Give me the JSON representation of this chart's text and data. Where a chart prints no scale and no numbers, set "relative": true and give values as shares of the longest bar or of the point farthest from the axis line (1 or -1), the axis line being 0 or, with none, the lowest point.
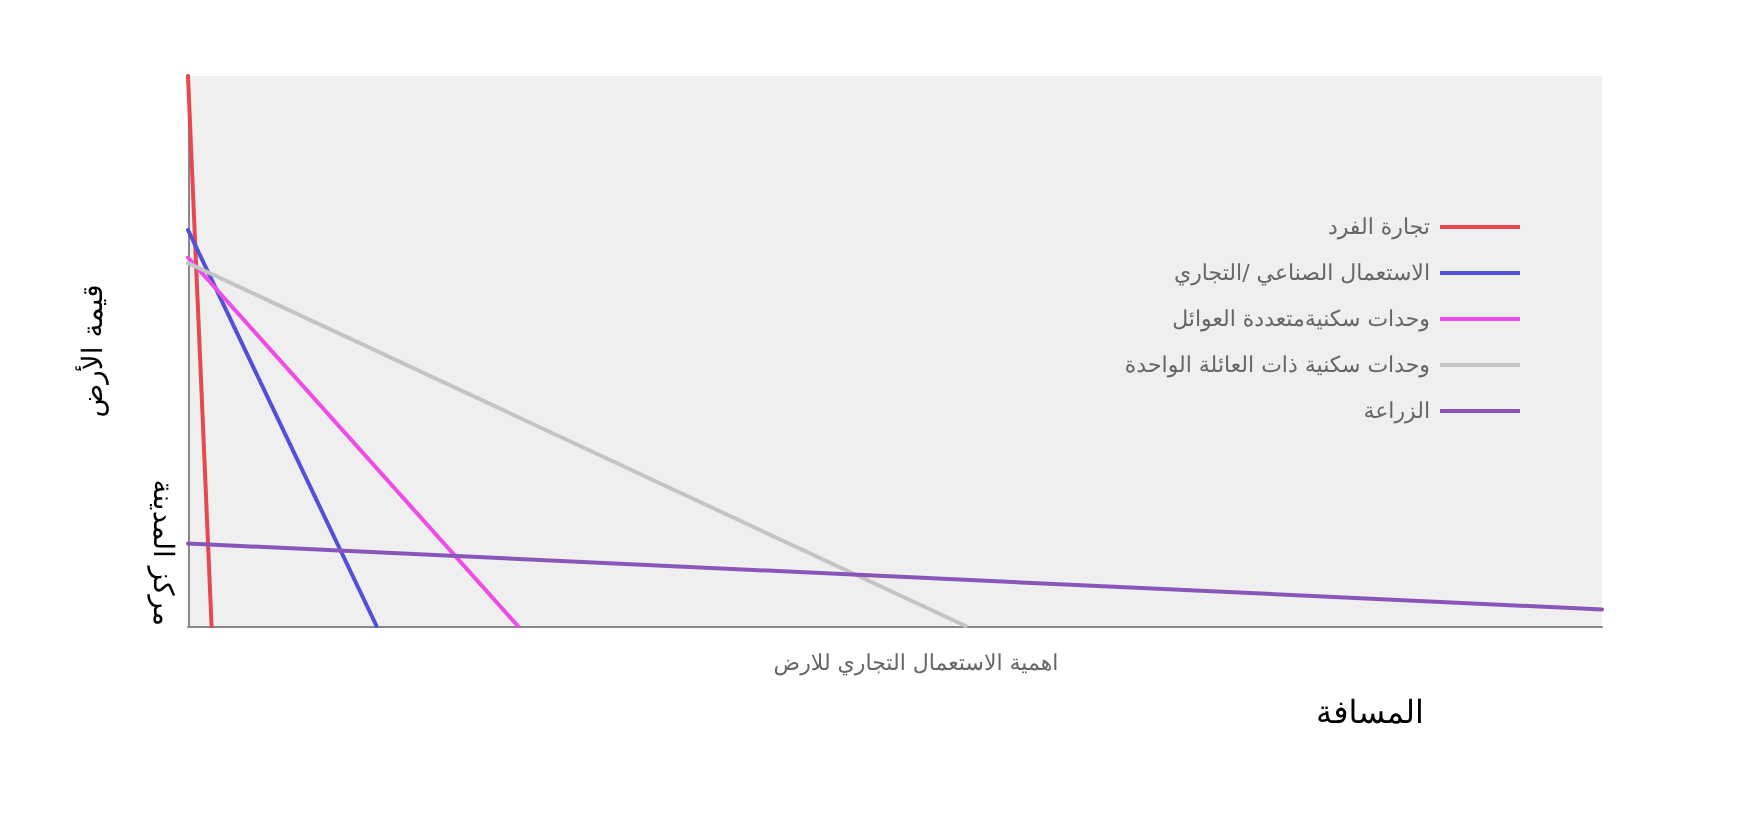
{
  "chart_data": {
    "type": "line",
    "relative": true,
    "xlabel": "المسافة",
    "ylabel": "قيمة الأرض",
    "legend": "top right",
    "grid": false,
    "marker": "none",
    "line_style": "solid",
    "annotations": [
      "مركز المدينة",
      "اهمية الاستعمال التجاري للارض"
    ],
    "categories": [
      null,
      null,
      null,
      null,
      null,
      null,
      null,
      null,
      null,
      null,
      null,
      null,
      null,
      null,
      null,
      null,
      null,
      null,
      null,
      null,
      null,
      null,
      null,
      null,
      null,
      null,
      null,
      null,
      null,
      null,
      null,
      null,
      null,
      null,
      null,
      null,
      null,
      null,
      null,
      null,
      null,
      null,
      null,
      null,
      null,
      null,
      null,
      null,
      null,
      null,
      null,
      null,
      null,
      null,
      null,
      null,
      null,
      null,
      null,
      null,
      null
    ],
    "series": [
      {
        "name": "تجارة الفرد",
        "color": "#e8474f",
        "values": [
          1,
          0,
          null,
          null,
          null,
          null,
          null,
          null,
          null,
          null,
          null,
          null,
          null,
          null,
          null,
          null,
          null,
          null,
          null,
          null,
          null,
          null,
          null,
          null,
          null,
          null,
          null,
          null,
          null,
          null,
          null,
          null,
          null,
          null,
          null,
          null,
          null,
          null,
          null,
          null,
          null,
          null,
          null,
          null,
          null,
          null,
          null,
          null,
          null,
          null,
          null,
          null,
          null,
          null,
          null,
          null,
          null,
          null,
          null,
          null,
          null
        ]
      },
      {
        "name": "الاستعمال الصناعي /التجاري",
        "color": "#5050d8",
        "values": [
          0.72,
          null,
          null,
          null,
          null,
          null,
          null,
          null,
          0,
          null,
          null,
          null,
          null,
          null,
          null,
          null,
          null,
          null,
          null,
          null,
          null,
          null,
          null,
          null,
          null,
          null,
          null,
          null,
          null,
          null,
          null,
          null,
          null,
          null,
          null,
          null,
          null,
          null,
          null,
          null,
          null,
          null,
          null,
          null,
          null,
          null,
          null,
          null,
          null,
          null,
          null,
          null,
          null,
          null,
          null,
          null,
          null,
          null,
          null,
          null,
          null
        ]
      },
      {
        "name": "وحدات سكنيةمتعددة العوائل",
        "color": "#ee4be8",
        "values": [
          0.67,
          null,
          null,
          null,
          null,
          null,
          null,
          null,
          null,
          null,
          null,
          null,
          null,
          null,
          0,
          null,
          null,
          null,
          null,
          null,
          null,
          null,
          null,
          null,
          null,
          null,
          null,
          null,
          null,
          null,
          null,
          null,
          null,
          null,
          null,
          null,
          null,
          null,
          null,
          null,
          null,
          null,
          null,
          null,
          null,
          null,
          null,
          null,
          null,
          null,
          null,
          null,
          null,
          null,
          null,
          null,
          null,
          null,
          null,
          null,
          null
        ]
      },
      {
        "name": "وحدات سكنية ذات العائلة الواحدة",
        "color": "#c4c4c4",
        "values": [
          0.66,
          null,
          null,
          null,
          null,
          null,
          null,
          null,
          null,
          null,
          null,
          null,
          null,
          null,
          null,
          null,
          null,
          null,
          null,
          null,
          null,
          null,
          null,
          null,
          null,
          null,
          null,
          null,
          null,
          null,
          null,
          null,
          null,
          0,
          null,
          null,
          null,
          null,
          null,
          null,
          null,
          null,
          null,
          null,
          null,
          null,
          null,
          null,
          null,
          null,
          null,
          null,
          null,
          null,
          null,
          null,
          null,
          null,
          null,
          null,
          null
        ]
      },
      {
        "name": "الزراعة",
        "color": "#8a55b8",
        "values": [
          0.15,
          null,
          null,
          null,
          null,
          null,
          null,
          null,
          null,
          null,
          null,
          null,
          null,
          null,
          null,
          null,
          null,
          null,
          null,
          null,
          null,
          null,
          null,
          null,
          null,
          null,
          null,
          null,
          null,
          null,
          null,
          null,
          null,
          null,
          null,
          null,
          null,
          null,
          null,
          null,
          null,
          null,
          null,
          null,
          null,
          null,
          null,
          null,
          null,
          null,
          null,
          null,
          null,
          null,
          null,
          null,
          null,
          null,
          null,
          null,
          0.03
        ]
      }
    ]
  }
}
